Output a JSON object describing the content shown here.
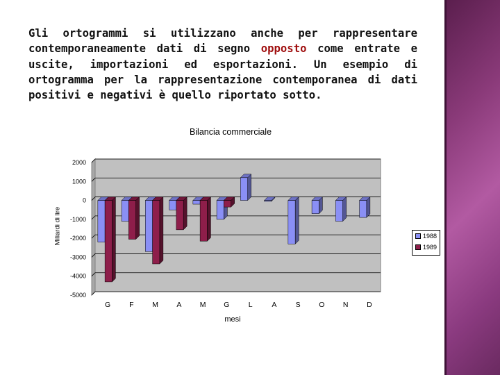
{
  "text": {
    "before": "Gli ortogrammi si utilizzano anche per rappresentare contemporaneamente dati di segno",
    "highlight": "opposto",
    "after": "come entrate e uscite, importazioni ed esportazioni. Un esempio di ortogramma per la rappresentazione contemporanea di dati positivi e negativi è quello riportato sotto."
  },
  "colors": {
    "series_1988": "#8a8ff5",
    "series_1989": "#8e1e4a",
    "plot_bg": "#c0c0c0",
    "highlight_text": "#a01010"
  },
  "chart_data": {
    "type": "bar",
    "title": "Bilancia commerciale",
    "xlabel": "mesi",
    "ylabel": "Miliardi di lire",
    "categories": [
      "G",
      "F",
      "M",
      "A",
      "M",
      "G",
      "L",
      "A",
      "S",
      "O",
      "N",
      "D"
    ],
    "ylim": [
      -5000,
      2000
    ],
    "yticks": [
      2000,
      1000,
      0,
      -1000,
      -2000,
      -3000,
      -4000,
      -5000
    ],
    "grid": true,
    "legend_position": "right",
    "style": "3d",
    "series": [
      {
        "name": "1988",
        "values": [
          -2200,
          -1100,
          -2700,
          -500,
          -200,
          -1000,
          1200,
          -50,
          -2300,
          -700,
          -1100,
          -900
        ]
      },
      {
        "name": "1989",
        "values": [
          -4300,
          -2050,
          -3350,
          -1550,
          -2150,
          -350,
          0,
          0,
          0,
          0,
          0,
          0
        ]
      }
    ]
  }
}
